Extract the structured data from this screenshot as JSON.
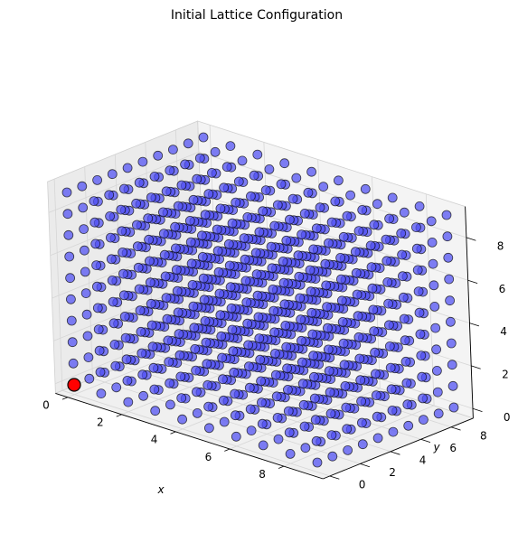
{
  "chart_data": {
    "type": "scatter3d",
    "title": "Initial Lattice Configuration",
    "xlabel": "x",
    "ylabel": "y",
    "zlabel": "",
    "xlim": [
      0,
      9
    ],
    "ylim": [
      0,
      9
    ],
    "zlim": [
      0,
      9
    ],
    "x_ticks": [
      "0",
      "2",
      "4",
      "6",
      "8"
    ],
    "y_ticks": [
      "0",
      "2",
      "4",
      "6",
      "8"
    ],
    "z_ticks": [
      "0",
      "2",
      "4",
      "6",
      "8"
    ],
    "lattice": {
      "x_values": [
        0,
        1,
        2,
        3,
        4,
        5,
        6,
        7,
        8,
        9
      ],
      "y_values": [
        0,
        1,
        2,
        3,
        4,
        5,
        6,
        7,
        8,
        9
      ],
      "z_values": [
        0,
        1,
        2,
        3,
        4,
        5,
        6,
        7,
        8,
        9
      ],
      "color": "#4d4df2",
      "edge_color": "#000000"
    },
    "highlight": {
      "x": 0,
      "y": 0,
      "z": 0,
      "color": "#ff0000"
    },
    "pane_color": "#f2f2f2",
    "grid": true
  }
}
